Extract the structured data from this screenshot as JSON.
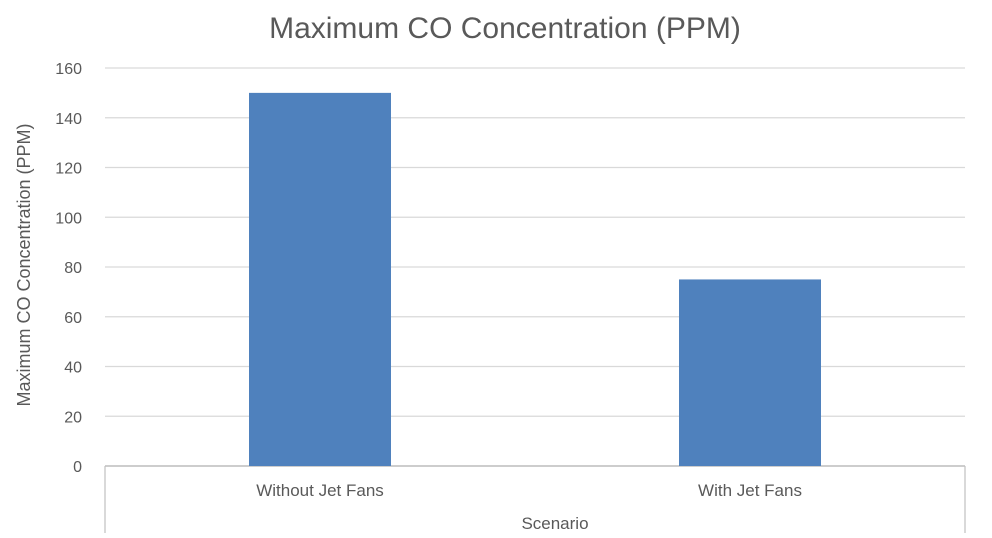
{
  "chart_data": {
    "type": "bar",
    "title": "Maximum CO Concentration (PPM)",
    "xlabel": "Scenario",
    "ylabel": "Maximum CO Concentration (PPM)",
    "categories": [
      "Without Jet Fans",
      "With Jet Fans"
    ],
    "series": [
      {
        "values": [
          150,
          75
        ]
      }
    ],
    "ylim": [
      0,
      160
    ],
    "yticks": [
      0,
      20,
      40,
      60,
      80,
      100,
      120,
      140,
      160
    ],
    "grid": true,
    "legend": "none",
    "colors": {
      "bar": "#4f81bd",
      "grid": "#d9d9d9",
      "axis": "#bfbfbf",
      "text": "#595959"
    }
  }
}
